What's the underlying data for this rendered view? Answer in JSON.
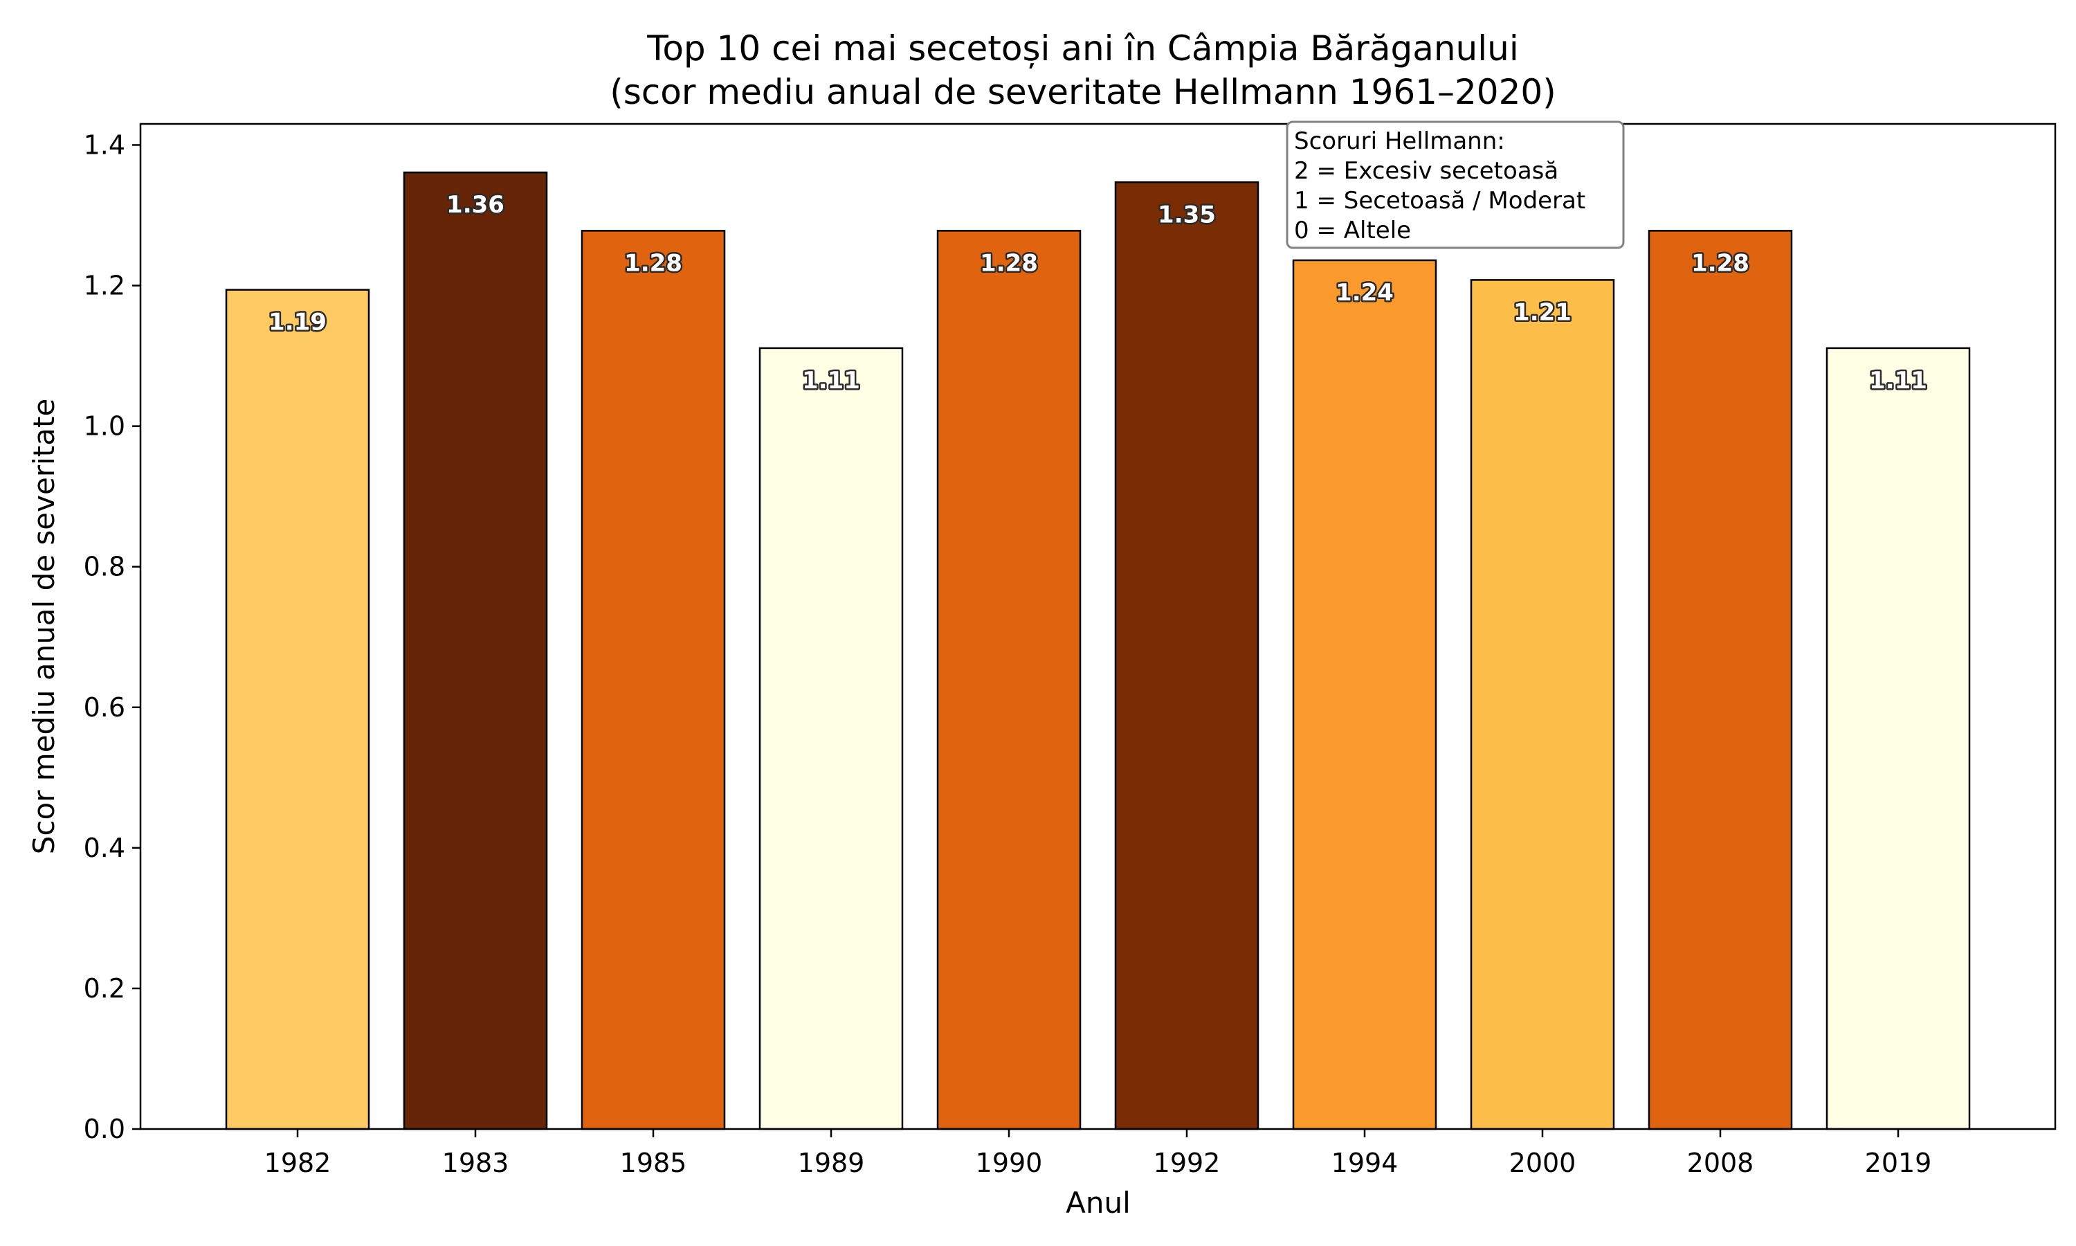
{
  "chart_data": {
    "type": "bar",
    "title": "Top 10 cei mai secetoși ani în Câmpia Bărăganului",
    "subtitle": "(scor mediu anual de severitate Hellmann 1961–2020)",
    "xlabel": "Anul",
    "ylabel": "Scor mediu anual de severitate",
    "categories": [
      "1982",
      "1983",
      "1985",
      "1989",
      "1990",
      "1992",
      "1994",
      "2000",
      "2008",
      "2019"
    ],
    "values": [
      1.194,
      1.361,
      1.278,
      1.111,
      1.278,
      1.347,
      1.236,
      1.208,
      1.278,
      1.111
    ],
    "value_labels": [
      "1.19",
      "1.36",
      "1.28",
      "1.11",
      "1.28",
      "1.35",
      "1.24",
      "1.21",
      "1.28",
      "1.11"
    ],
    "colors": [
      "#fdca64",
      "#662506",
      "#e0640f",
      "#ffffe5",
      "#e0640f",
      "#7a2c05",
      "#fb9a2c",
      "#febe4a",
      "#e0640f",
      "#ffffe5"
    ],
    "ylim": [
      0,
      1.43
    ],
    "yticks": [
      "0.0",
      "0.2",
      "0.4",
      "0.6",
      "0.8",
      "1.0",
      "1.2",
      "1.4"
    ],
    "grid": false,
    "annotation": {
      "position": "top-center",
      "lines": [
        "Scoruri Hellmann:",
        "2 = Excesiv secetoasă",
        "1 = Secetoasă / Moderat",
        "0 = Altele"
      ]
    }
  }
}
